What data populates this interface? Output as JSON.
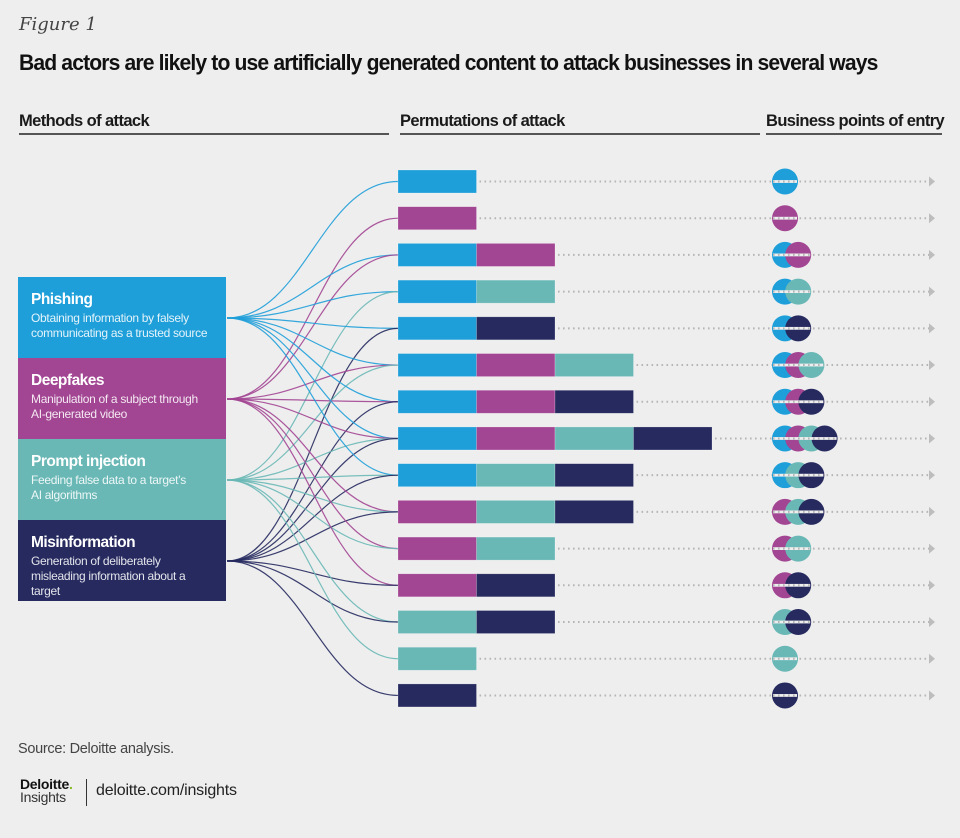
{
  "figure_label": "Figure 1",
  "title": "Bad actors are likely to use artificially generated content to attack businesses in several ways",
  "columns": {
    "methods": "Methods of attack",
    "permutations": "Permutations of attack",
    "entry": "Business points of entry"
  },
  "colors": {
    "phishing": "#1f9fd9",
    "deepfakes": "#a24592",
    "prompt_injection": "#69b8b6",
    "misinformation": "#262a5f",
    "background": "#eeeeee",
    "dotted_line": "#b5b5b5"
  },
  "methods": [
    {
      "key": "phishing",
      "name": "Phishing",
      "description": "Obtaining information by falsely communicating as a trusted source"
    },
    {
      "key": "deepfakes",
      "name": "Deepfakes",
      "description": "Manipulation of a subject through AI-generated video"
    },
    {
      "key": "prompt_injection",
      "name": "Prompt injection",
      "description": "Feeding false data to a target’s AI algorithms"
    },
    {
      "key": "misinformation",
      "name": "Misinformation",
      "description": "Generation of deliberately misleading information about a target"
    }
  ],
  "permutations": [
    [
      "phishing"
    ],
    [
      "deepfakes"
    ],
    [
      "phishing",
      "deepfakes"
    ],
    [
      "phishing",
      "prompt_injection"
    ],
    [
      "phishing",
      "misinformation"
    ],
    [
      "phishing",
      "deepfakes",
      "prompt_injection"
    ],
    [
      "phishing",
      "deepfakes",
      "misinformation"
    ],
    [
      "phishing",
      "deepfakes",
      "prompt_injection",
      "misinformation"
    ],
    [
      "phishing",
      "prompt_injection",
      "misinformation"
    ],
    [
      "deepfakes",
      "prompt_injection",
      "misinformation"
    ],
    [
      "deepfakes",
      "prompt_injection"
    ],
    [
      "deepfakes",
      "misinformation"
    ],
    [
      "prompt_injection",
      "misinformation"
    ],
    [
      "prompt_injection"
    ],
    [
      "misinformation"
    ]
  ],
  "footer": {
    "source": "Source: Deloitte analysis.",
    "logo_brand": "Deloitte",
    "logo_dot": ".",
    "logo_sub": "Insights",
    "url": "deloitte.com/insights"
  }
}
